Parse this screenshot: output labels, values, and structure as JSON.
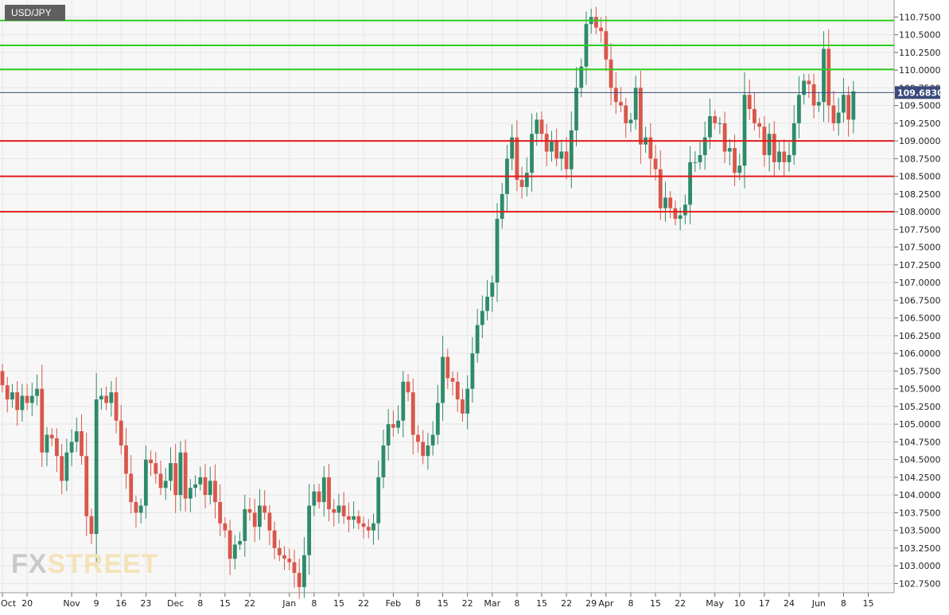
{
  "symbol": "USD/JPY",
  "watermark": {
    "part1": "FX",
    "part2": "STREET"
  },
  "colors": {
    "up": "#2e8b6a",
    "down": "#d9574a",
    "resistance": "#2ecc1f",
    "support": "#e31b1b",
    "price_line": "#3b4a7a",
    "grid": "#e6e6e6",
    "plot_bg": "#f7f7f7"
  },
  "chart_data": {
    "type": "candlestick",
    "title": "USD/JPY",
    "xlabel": "",
    "ylabel": "",
    "ylim": [
      102.62,
      110.99
    ],
    "y_ticks": [
      "102.7500",
      "103.0000",
      "103.2500",
      "103.5000",
      "103.7500",
      "104.0000",
      "104.2500",
      "104.5000",
      "104.7500",
      "105.0000",
      "105.2500",
      "105.5000",
      "105.7500",
      "106.0000",
      "106.2500",
      "106.5000",
      "106.7500",
      "107.0000",
      "107.2500",
      "107.5000",
      "107.7500",
      "108.0000",
      "108.2500",
      "108.5000",
      "108.7500",
      "109.0000",
      "109.2500",
      "109.5000",
      "109.7500",
      "110.0000",
      "110.2500",
      "110.5000",
      "110.7500"
    ],
    "x_ticks": [
      {
        "label": "Oct",
        "idx": 0
      },
      {
        "label": "20",
        "idx": 5
      },
      {
        "label": "Nov",
        "idx": 14
      },
      {
        "label": "9",
        "idx": 19
      },
      {
        "label": "16",
        "idx": 24
      },
      {
        "label": "23",
        "idx": 29
      },
      {
        "label": "Dec",
        "idx": 35
      },
      {
        "label": "8",
        "idx": 40
      },
      {
        "label": "15",
        "idx": 45
      },
      {
        "label": "22",
        "idx": 50
      },
      {
        "label": "Jan",
        "idx": 58
      },
      {
        "label": "8",
        "idx": 63
      },
      {
        "label": "15",
        "idx": 68
      },
      {
        "label": "22",
        "idx": 73
      },
      {
        "label": "Feb",
        "idx": 79
      },
      {
        "label": "8",
        "idx": 84
      },
      {
        "label": "15",
        "idx": 89
      },
      {
        "label": "22",
        "idx": 94
      },
      {
        "label": "Mar",
        "idx": 99
      },
      {
        "label": "8",
        "idx": 104
      },
      {
        "label": "15",
        "idx": 109
      },
      {
        "label": "22",
        "idx": 114
      },
      {
        "label": "29",
        "idx": 119
      },
      {
        "label": "Apr",
        "idx": 122
      },
      {
        "label": "8",
        "idx": 127
      },
      {
        "label": "15",
        "idx": 132
      },
      {
        "label": "22",
        "idx": 137
      },
      {
        "label": "May",
        "idx": 144
      },
      {
        "label": "10",
        "idx": 149
      },
      {
        "label": "17",
        "idx": 154
      },
      {
        "label": "24",
        "idx": 159
      },
      {
        "label": "Jun",
        "idx": 165
      },
      {
        "label": "8",
        "idx": 170
      },
      {
        "label": "15",
        "idx": 175
      }
    ],
    "horizontal_lines": [
      {
        "kind": "resistance",
        "value": 110.7
      },
      {
        "kind": "resistance",
        "value": 110.35
      },
      {
        "kind": "resistance",
        "value": 110.01
      },
      {
        "kind": "support",
        "value": 109.0
      },
      {
        "kind": "support",
        "value": 108.5
      },
      {
        "kind": "support",
        "value": 108.0
      }
    ],
    "last_price": {
      "value": 109.683,
      "label": "109.6830"
    },
    "closes": [
      105.55,
      105.35,
      105.45,
      105.2,
      105.4,
      105.3,
      105.4,
      105.5,
      104.6,
      104.85,
      104.8,
      104.55,
      104.2,
      104.6,
      104.75,
      104.9,
      104.55,
      103.7,
      103.45,
      105.35,
      105.4,
      105.3,
      105.45,
      105.05,
      104.7,
      104.3,
      103.9,
      103.75,
      103.85,
      104.5,
      104.45,
      104.3,
      104.1,
      104.2,
      104.45,
      104.0,
      104.6,
      103.95,
      104.1,
      104.15,
      104.25,
      104.0,
      104.2,
      103.9,
      103.6,
      103.5,
      103.1,
      103.3,
      103.35,
      103.8,
      103.75,
      103.55,
      103.85,
      103.75,
      103.5,
      103.25,
      103.15,
      103.1,
      103.05,
      102.9,
      102.7,
      103.15,
      103.85,
      104.05,
      103.9,
      104.25,
      103.8,
      103.75,
      103.85,
      103.7,
      103.65,
      103.7,
      103.6,
      103.55,
      103.5,
      103.6,
      104.25,
      104.7,
      105.0,
      104.95,
      105.05,
      105.6,
      105.45,
      104.85,
      104.75,
      104.55,
      104.7,
      104.85,
      105.3,
      105.95,
      105.65,
      105.6,
      105.35,
      105.15,
      105.5,
      106.0,
      106.4,
      106.6,
      106.8,
      107.0,
      107.9,
      108.25,
      108.75,
      109.05,
      108.45,
      108.35,
      108.55,
      109.1,
      109.3,
      109.1,
      108.85,
      109.0,
      108.75,
      108.85,
      108.6,
      109.15,
      109.75,
      110.05,
      110.65,
      110.75,
      110.6,
      110.55,
      110.15,
      109.75,
      109.55,
      109.5,
      109.25,
      109.3,
      109.75,
      108.95,
      109.05,
      108.75,
      108.6,
      108.05,
      108.2,
      108.05,
      107.9,
      107.95,
      108.1,
      108.7,
      108.7,
      108.8,
      109.05,
      109.35,
      109.25,
      109.25,
      108.85,
      108.9,
      108.55,
      108.65,
      109.65,
      109.45,
      109.25,
      109.2,
      108.8,
      109.1,
      108.7,
      108.85,
      108.7,
      108.8,
      109.25,
      109.65,
      109.85,
      109.8,
      109.5,
      109.55,
      110.3,
      109.5,
      109.25,
      109.4,
      109.65,
      109.3,
      109.7
    ]
  }
}
